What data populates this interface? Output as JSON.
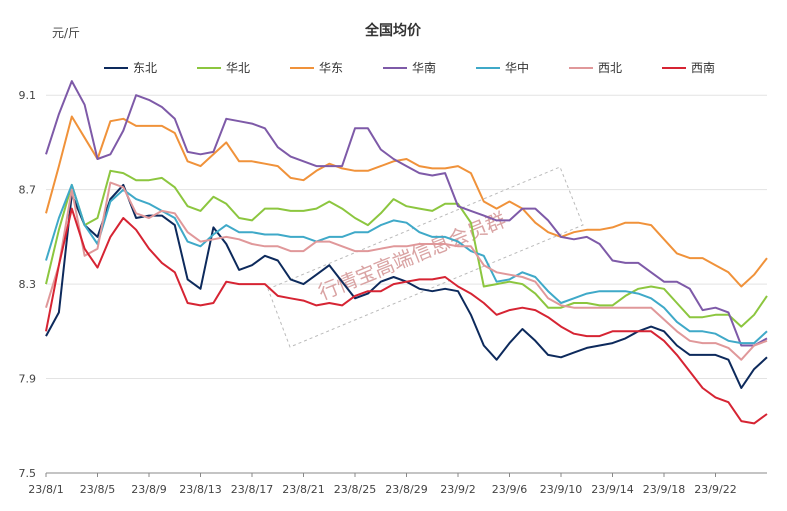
{
  "chart_data": {
    "type": "line",
    "title": "全国均价",
    "unit_label": "元/斤",
    "ylim": [
      7.5,
      9.3
    ],
    "yticks": [
      "7.5",
      "7.9",
      "8.3",
      "8.7",
      "9.1"
    ],
    "x_tick_labels": [
      "23/8/1",
      "23/8/5",
      "23/8/9",
      "23/8/13",
      "23/8/17",
      "23/8/21",
      "23/8/25",
      "23/8/29",
      "23/9/2",
      "23/9/6",
      "23/9/10",
      "23/9/14",
      "23/9/18",
      "23/9/22"
    ],
    "grid": "horizontal",
    "legend_position": "top",
    "watermark": "行情宝高端信息会员群",
    "series": [
      {
        "name": "东北",
        "color": "#0d2a5c",
        "values": [
          8.08,
          8.18,
          8.68,
          8.55,
          8.5,
          8.66,
          8.72,
          8.58,
          8.59,
          8.59,
          8.55,
          8.32,
          8.28,
          8.54,
          8.47,
          8.36,
          8.38,
          8.42,
          8.4,
          8.32,
          8.3,
          8.34,
          8.38,
          8.31,
          8.24,
          8.26,
          8.31,
          8.33,
          8.31,
          8.28,
          8.27,
          8.28,
          8.27,
          8.17,
          8.04,
          7.98,
          8.05,
          8.11,
          8.06,
          8.0,
          7.99,
          8.01,
          8.03,
          8.04,
          8.05,
          8.07,
          8.1,
          8.12,
          8.1,
          8.04,
          8.0,
          8.0,
          8.0,
          7.98,
          7.86,
          7.94,
          7.99
        ]
      },
      {
        "name": "华北",
        "color": "#8cc63f",
        "values": [
          8.3,
          8.53,
          8.72,
          8.55,
          8.58,
          8.78,
          8.77,
          8.74,
          8.74,
          8.75,
          8.71,
          8.63,
          8.61,
          8.67,
          8.64,
          8.58,
          8.57,
          8.62,
          8.62,
          8.61,
          8.61,
          8.62,
          8.65,
          8.62,
          8.58,
          8.55,
          8.6,
          8.66,
          8.63,
          8.62,
          8.61,
          8.64,
          8.64,
          8.56,
          8.29,
          8.3,
          8.31,
          8.3,
          8.26,
          8.2,
          8.2,
          8.22,
          8.22,
          8.21,
          8.21,
          8.25,
          8.28,
          8.29,
          8.28,
          8.22,
          8.16,
          8.16,
          8.17,
          8.17,
          8.12,
          8.17,
          8.25
        ]
      },
      {
        "name": "华东",
        "color": "#f0923a",
        "values": [
          8.6,
          8.8,
          9.01,
          8.92,
          8.83,
          8.99,
          9.0,
          8.97,
          8.97,
          8.97,
          8.94,
          8.82,
          8.8,
          8.85,
          8.9,
          8.82,
          8.82,
          8.81,
          8.8,
          8.75,
          8.74,
          8.78,
          8.81,
          8.79,
          8.78,
          8.78,
          8.8,
          8.82,
          8.83,
          8.8,
          8.79,
          8.79,
          8.8,
          8.77,
          8.65,
          8.62,
          8.65,
          8.62,
          8.56,
          8.52,
          8.5,
          8.52,
          8.53,
          8.53,
          8.54,
          8.56,
          8.56,
          8.55,
          8.49,
          8.43,
          8.41,
          8.41,
          8.38,
          8.35,
          8.29,
          8.34,
          8.41
        ]
      },
      {
        "name": "华南",
        "color": "#7e5aa8",
        "values": [
          8.85,
          9.02,
          9.16,
          9.06,
          8.83,
          8.85,
          8.95,
          9.1,
          9.08,
          9.05,
          9.0,
          8.86,
          8.85,
          8.86,
          9.0,
          8.99,
          8.98,
          8.96,
          8.88,
          8.84,
          8.82,
          8.8,
          8.8,
          8.8,
          8.96,
          8.96,
          8.87,
          8.83,
          8.8,
          8.77,
          8.76,
          8.77,
          8.63,
          8.61,
          8.59,
          8.57,
          8.57,
          8.62,
          8.62,
          8.57,
          8.5,
          8.49,
          8.5,
          8.47,
          8.4,
          8.39,
          8.39,
          8.35,
          8.31,
          8.31,
          8.28,
          8.19,
          8.2,
          8.18,
          8.04,
          8.04,
          8.07
        ]
      },
      {
        "name": "华中",
        "color": "#3fa9c8",
        "values": [
          8.4,
          8.58,
          8.72,
          8.55,
          8.47,
          8.65,
          8.7,
          8.66,
          8.64,
          8.61,
          8.58,
          8.48,
          8.46,
          8.51,
          8.55,
          8.52,
          8.52,
          8.51,
          8.51,
          8.5,
          8.5,
          8.48,
          8.5,
          8.5,
          8.52,
          8.52,
          8.55,
          8.57,
          8.56,
          8.52,
          8.5,
          8.5,
          8.48,
          8.44,
          8.42,
          8.31,
          8.32,
          8.35,
          8.33,
          8.27,
          8.22,
          8.24,
          8.26,
          8.27,
          8.27,
          8.27,
          8.26,
          8.24,
          8.2,
          8.14,
          8.1,
          8.1,
          8.09,
          8.06,
          8.05,
          8.05,
          8.1
        ]
      },
      {
        "name": "西北",
        "color": "#e0989a",
        "values": [
          8.2,
          8.38,
          8.7,
          8.42,
          8.45,
          8.73,
          8.71,
          8.6,
          8.58,
          8.61,
          8.6,
          8.52,
          8.48,
          8.49,
          8.5,
          8.49,
          8.47,
          8.46,
          8.46,
          8.44,
          8.44,
          8.48,
          8.48,
          8.46,
          8.44,
          8.44,
          8.45,
          8.46,
          8.46,
          8.47,
          8.47,
          8.47,
          8.46,
          8.46,
          8.38,
          8.35,
          8.34,
          8.33,
          8.31,
          8.24,
          8.21,
          8.2,
          8.2,
          8.2,
          8.2,
          8.2,
          8.2,
          8.2,
          8.15,
          8.1,
          8.06,
          8.05,
          8.05,
          8.03,
          7.98,
          8.04,
          8.06
        ]
      },
      {
        "name": "西南",
        "color": "#d62433",
        "values": [
          8.1,
          8.38,
          8.62,
          8.45,
          8.37,
          8.5,
          8.58,
          8.53,
          8.45,
          8.39,
          8.35,
          8.22,
          8.21,
          8.22,
          8.31,
          8.3,
          8.3,
          8.3,
          8.25,
          8.24,
          8.23,
          8.21,
          8.22,
          8.21,
          8.25,
          8.27,
          8.27,
          8.3,
          8.31,
          8.32,
          8.32,
          8.33,
          8.29,
          8.26,
          8.22,
          8.17,
          8.19,
          8.2,
          8.19,
          8.16,
          8.12,
          8.09,
          8.08,
          8.08,
          8.1,
          8.1,
          8.1,
          8.1,
          8.06,
          8.0,
          7.93,
          7.86,
          7.82,
          7.8,
          7.72,
          7.71,
          7.75
        ]
      }
    ]
  }
}
